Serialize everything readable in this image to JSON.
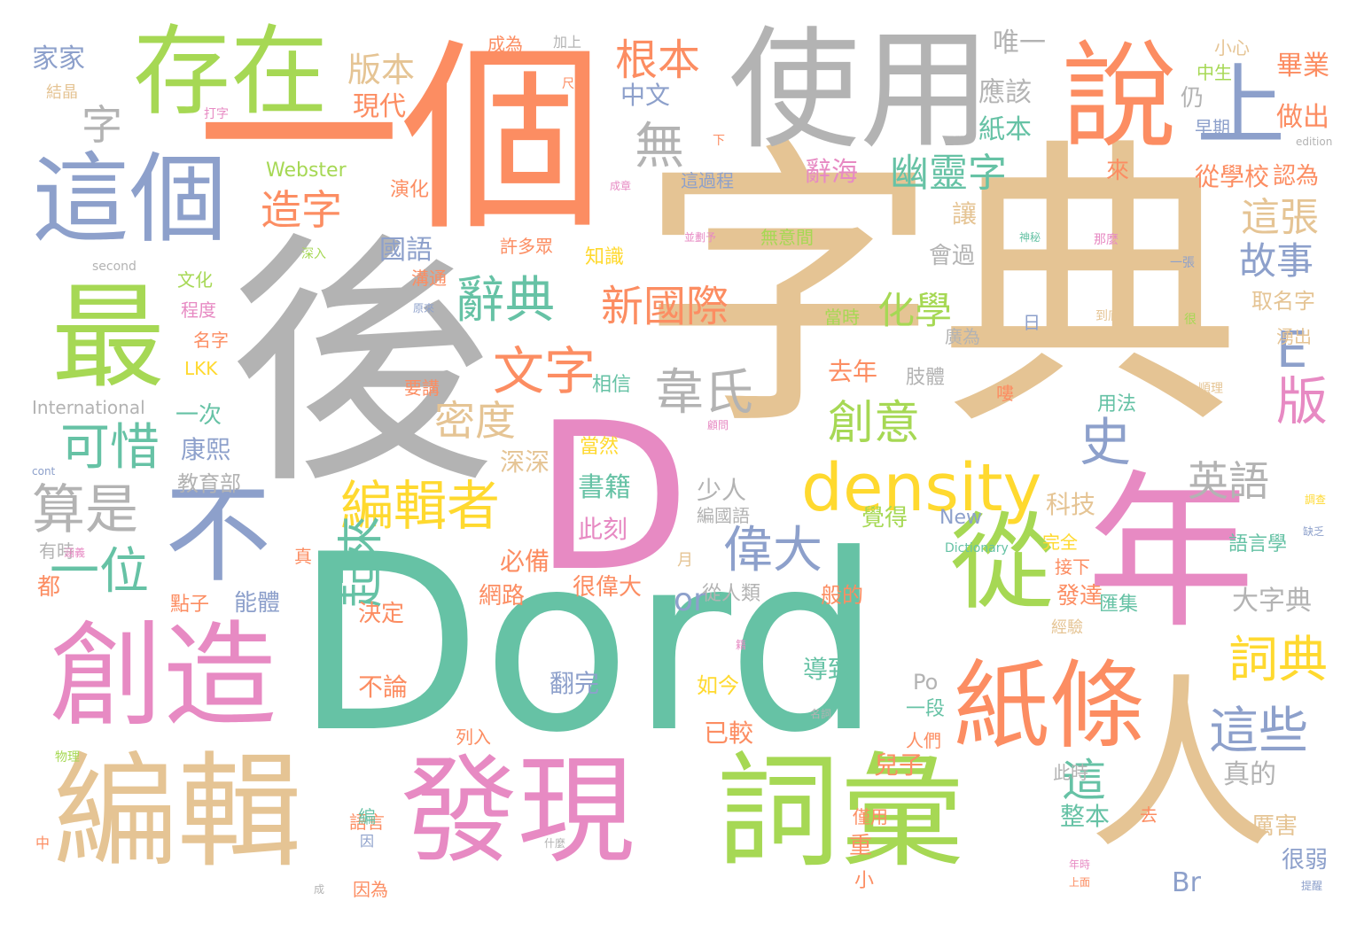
{
  "palette": {
    "gray": "#b3b3b3",
    "tan": "#e5c494",
    "green": "#66c2a5",
    "orange": "#fc8d62",
    "blue": "#8da0cb",
    "pink": "#e78ac3",
    "lime": "#a6d854",
    "yellow": "#ffd92f"
  },
  "words": [
    "字典",
    "後",
    "Dord",
    "一個",
    "使用",
    "年",
    "D",
    "發現",
    "詞彙",
    "人",
    "編輯",
    "存在",
    "這個",
    "最",
    "從",
    "紙條",
    "創造",
    "說",
    "上",
    "不",
    "density",
    "辭典",
    "新國際",
    "編輯者",
    "偉大",
    "幽靈字",
    "化學",
    "文字",
    "韋氏",
    "創意",
    "史",
    "英語",
    "這些",
    "根本",
    "版本",
    "造字",
    "可惜",
    "算是",
    "一位",
    "起來",
    "詞典",
    "故事",
    "版",
    "E",
    "這張",
    "無",
    "字",
    "密度",
    "or",
    "這",
    "唯一",
    "現代",
    "應該",
    "紙本",
    "從學校",
    "國語",
    "辭海",
    "做出",
    "畢業",
    "小心",
    "家家",
    "結晶",
    "成為",
    "加上",
    "中文",
    "仍",
    "早期",
    "中生",
    "Webster",
    "演化",
    "許多眾",
    "知識",
    "讓",
    "會過",
    "文化",
    "程度",
    "名字",
    "LKK",
    "International",
    "去年",
    "一次",
    "康熙",
    "教育部",
    "深深",
    "必備",
    "書籍",
    "此刻",
    "科技",
    "完全",
    "接下",
    "發達",
    "大字典",
    "點子",
    "能體",
    "網路",
    "很偉大",
    "決定",
    "不論",
    "導致",
    "已較",
    "翻完",
    "如今",
    "一段",
    "人們",
    "兒子",
    "此時",
    "真的",
    "整本",
    "厲害",
    "很弱",
    "語言",
    "因為",
    "重",
    "小",
    "Br",
    "Po",
    "New",
    "Dictionary",
    "語言學",
    "相信",
    "肢體",
    "編國語",
    "當然",
    "覺得",
    "少人",
    "從人類",
    "般的",
    "用法",
    "順理",
    "湧出",
    "取名字",
    "認為",
    "當時",
    "廣為",
    "無意間",
    "經驗",
    "匯集",
    "列入",
    "物理",
    "second",
    "深入",
    "溝通",
    "原來",
    "要講",
    "來",
    "都",
    "有時",
    "真",
    "月",
    "尺",
    "打字",
    "下",
    "成章",
    "這過程",
    "神秘",
    "那麼",
    "一張",
    "很",
    "到底",
    "日",
    "去",
    "僅用",
    "中",
    "編",
    "因",
    "什麼",
    "成",
    "上面",
    "年時",
    "提醒",
    "edition",
    "cont",
    "涵義",
    "缺乏",
    "調查",
    "顧問",
    "嘍",
    "並劃予",
    "籍",
    "名詞"
  ]
}
